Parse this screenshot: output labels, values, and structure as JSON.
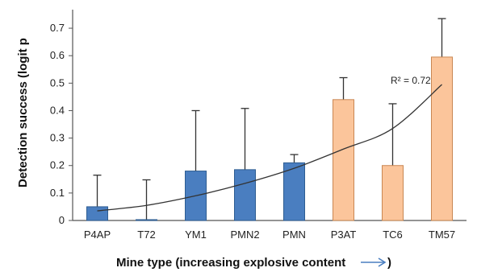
{
  "chart_data": {
    "type": "bar",
    "title": "",
    "xlabel": "Mine type (increasing explosive content",
    "ylabel": "Detection success (logit p",
    "ylim": [
      0,
      0.75
    ],
    "yticks": [
      "0",
      "0.1",
      "0.2",
      "0.3",
      "0.4",
      "0.5",
      "0.6",
      "0.7"
    ],
    "categories": [
      "P4AP",
      "T72",
      "YM1",
      "PMN2",
      "PMN",
      "P3AT",
      "TC6",
      "TM57"
    ],
    "values": [
      0.05,
      0.003,
      0.18,
      0.185,
      0.21,
      0.44,
      0.2,
      0.595
    ],
    "error_upper": [
      0.165,
      0.148,
      0.4,
      0.408,
      0.24,
      0.52,
      0.425,
      0.735
    ],
    "groups": [
      "a",
      "a",
      "a",
      "a",
      "a",
      "b",
      "b",
      "b"
    ],
    "group_colors": {
      "a": "#4a7ec0",
      "b": "#fbc59b"
    },
    "group_edge_colors": {
      "a": "#2e5d92",
      "b": "#c98752"
    },
    "trendline": {
      "type": "polynomial",
      "label": "R² = 0.72",
      "values": [
        0.035,
        0.055,
        0.09,
        0.135,
        0.19,
        0.26,
        0.335,
        0.495
      ]
    },
    "arrow_color": "#4a7ec0",
    "grid": false,
    "legend": "none"
  }
}
